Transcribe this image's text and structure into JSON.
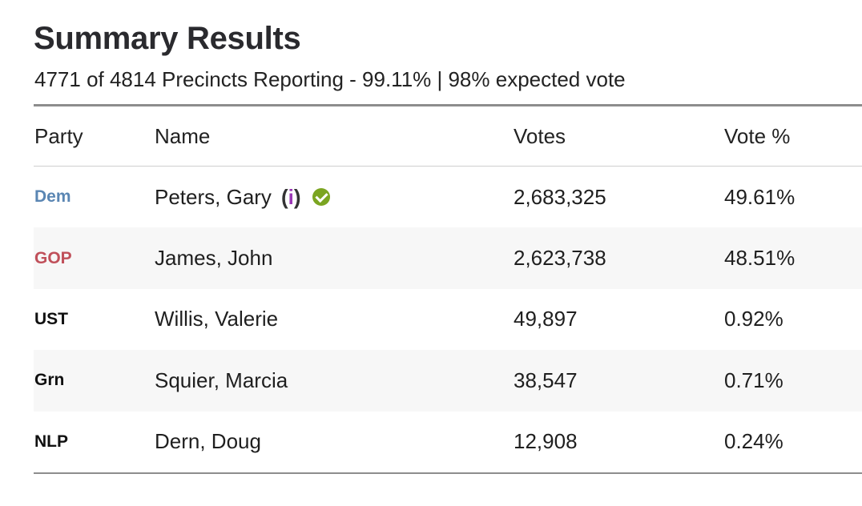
{
  "title": "Summary Results",
  "subtitle": "4771 of 4814 Precincts Reporting - 99.11% | 98% expected vote",
  "headers": {
    "party": "Party",
    "name": "Name",
    "votes": "Votes",
    "pct": "Vote %"
  },
  "info_label": {
    "open": "(",
    "i": "i",
    "close": ")"
  },
  "colors": {
    "dem": "#5a86b3",
    "gop": "#c0505a",
    "winner_check": "#7ba521",
    "info_i": "#9b37b5"
  },
  "rows": [
    {
      "party": "Dem",
      "name": "Peters, Gary",
      "votes": "2,683,325",
      "pct": "49.61%",
      "winner": true
    },
    {
      "party": "GOP",
      "name": "James, John",
      "votes": "2,623,738",
      "pct": "48.51%"
    },
    {
      "party": "UST",
      "name": "Willis, Valerie",
      "votes": "49,897",
      "pct": "0.92%"
    },
    {
      "party": "Grn",
      "name": "Squier, Marcia",
      "votes": "38,547",
      "pct": "0.71%"
    },
    {
      "party": "NLP",
      "name": "Dern, Doug",
      "votes": "12,908",
      "pct": "0.24%"
    }
  ]
}
